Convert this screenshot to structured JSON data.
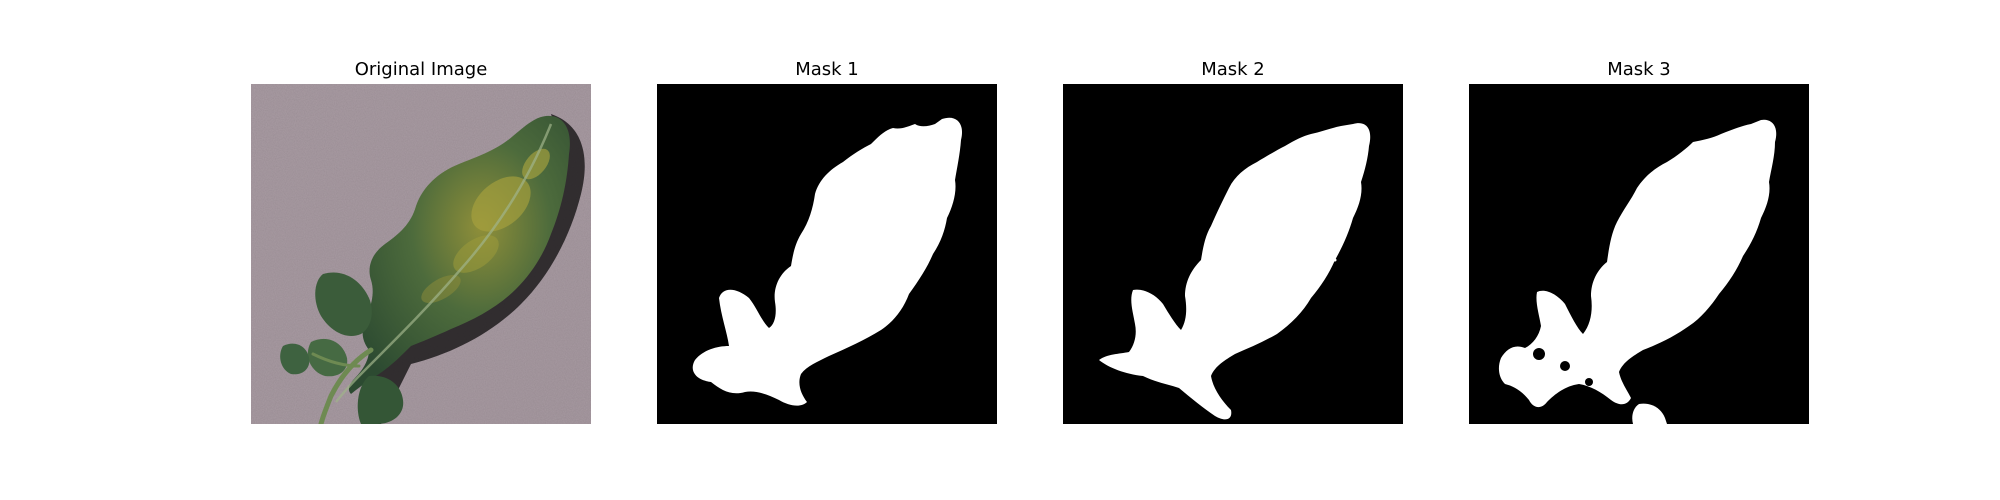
{
  "figure": {
    "panels": [
      {
        "title": "Original Image",
        "kind": "photo"
      },
      {
        "title": "Mask 1",
        "kind": "mask"
      },
      {
        "title": "Mask 2",
        "kind": "mask"
      },
      {
        "title": "Mask 3",
        "kind": "mask"
      }
    ]
  },
  "colors": {
    "background": "#ffffff",
    "mask_background": "#000000",
    "mask_foreground": "#ffffff",
    "ground": "#a89aa1",
    "leaf_dark": "#2f4f32",
    "leaf_mid": "#4b6b3b",
    "leaf_yellow": "#9e9a3c",
    "leaf_shadow": "#1f1f1f"
  }
}
